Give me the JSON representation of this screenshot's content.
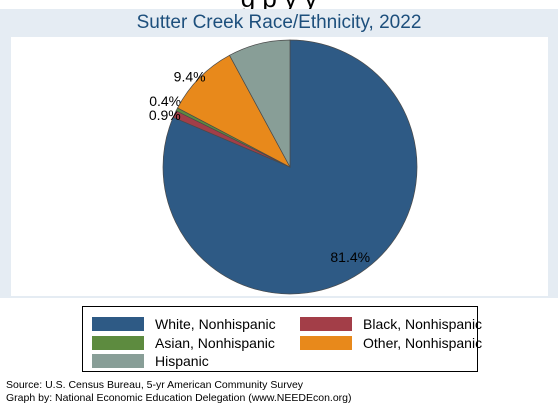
{
  "header": {
    "cutoff_text": "g    p      y           y"
  },
  "chart_data": {
    "type": "pie",
    "title": "Sutter Creek Race/Ethnicity, 2022",
    "slices": [
      {
        "name": "White, Nonhispanic",
        "value": 81.4,
        "label": "81.4%",
        "color": "#2e5a85"
      },
      {
        "name": "Black, Nonhispanic",
        "value": 0.9,
        "label": "0.9%",
        "color": "#a33e48"
      },
      {
        "name": "Asian, Nonhispanic",
        "value": 0.4,
        "label": "0.4%",
        "color": "#5d8b3f"
      },
      {
        "name": "Other, Nonhispanic",
        "value": 9.4,
        "label": "9.4%",
        "color": "#e8891b"
      },
      {
        "name": "Hispanic",
        "value": 7.9,
        "label": "7.9%",
        "color": "#889e97"
      }
    ],
    "legend": {
      "position": "bottom",
      "items": [
        {
          "label": "White, Nonhispanic",
          "color": "#2e5a85"
        },
        {
          "label": "Black, Nonhispanic",
          "color": "#a33e48"
        },
        {
          "label": "Asian, Nonhispanic",
          "color": "#5d8b3f"
        },
        {
          "label": "Other, Nonhispanic",
          "color": "#e8891b"
        },
        {
          "label": "Hispanic",
          "color": "#889e97"
        }
      ]
    }
  },
  "footer": {
    "source": "Source:  U.S. Census Bureau, 5-yr American Community Survey",
    "credit": "Graph by: National Economic Education Delegation (www.NEEDEcon.org)"
  },
  "colors": {
    "panel_bg": "#e5ecf3",
    "title": "#1d4f7c",
    "slice_edge": "#4a4a4a"
  }
}
